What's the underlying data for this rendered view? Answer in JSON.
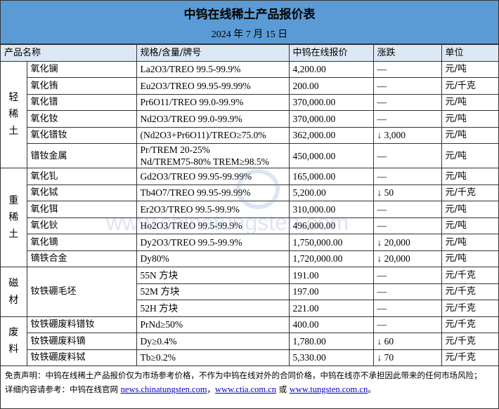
{
  "title": "中钨在线稀土产品报价表",
  "date": "2024 年 7 月 15 日",
  "headers": [
    "产品名称",
    "规格/含量/牌号",
    "中钨在线报价",
    "涨跌",
    "单位"
  ],
  "categories": [
    "轻稀土",
    "重稀土",
    "磁材",
    "废料"
  ],
  "rows": [
    {
      "name": "氧化镧",
      "spec": "La2O3/TREO 99.5-99.9%",
      "price": "4,200.00",
      "change": "—",
      "unit": "元/吨"
    },
    {
      "name": "氧化铕",
      "spec": "Eu2O3/TREO 99.95-99.99%",
      "price": "200.00",
      "change": "—",
      "unit": "元/千克"
    },
    {
      "name": "氧化镨",
      "spec": "Pr6O11/TREO 99.0-99.9%",
      "price": "370,000.00",
      "change": "—",
      "unit": "元/吨"
    },
    {
      "name": "氧化钕",
      "spec": "Nd2O3/TREO 99.0-99.9%",
      "price": "370,000.00",
      "change": "—",
      "unit": "元/吨"
    },
    {
      "name": "氧化镨钕",
      "spec": "(Nd2O3+Pr6O11)/TREO≥75.0%",
      "price": "362,000.00",
      "change": "↓ 3,000",
      "unit": "元/吨"
    },
    {
      "name": "镨钕金属",
      "spec": "Pr/TREM 20-25%",
      "spec2": "Nd/TREM75-80% TREM≥98.5%",
      "price": "450,000.00",
      "change": "—",
      "unit": "元/吨"
    },
    {
      "name": "氧化钆",
      "spec": "Gd2O3/TREO 99.95-99.99%",
      "price": "165,000.00",
      "change": "—",
      "unit": "元/吨"
    },
    {
      "name": "氧化铽",
      "spec": "Tb4O7/TREO 99.95-99.99%",
      "price": "5,200.00",
      "change": "↓ 50",
      "unit": "元/千克"
    },
    {
      "name": "氧化铒",
      "spec": "Er2O3/TREO 99.5-99.9%",
      "price": "310,000.00",
      "change": "—",
      "unit": "元/吨"
    },
    {
      "name": "氧化钬",
      "spec": "Ho2O3/TREO 99.5-99.9%",
      "price": "496,000.00",
      "change": "—",
      "unit": "元/吨"
    },
    {
      "name": "氧化镝",
      "spec": "Dy2O3/TREO 99.5-99.9%",
      "price": "1,750,000.00",
      "change": "↓ 20,000",
      "unit": "元/吨"
    },
    {
      "name": "镝铁合金",
      "spec": "Dy80%",
      "price": "1,720,000.00",
      "change": "↓ 20,000",
      "unit": "元/吨"
    },
    {
      "name": "钕铁硼毛坯",
      "spec": "55N 方块",
      "price": "191.00",
      "change": "—",
      "unit": "元/千克"
    },
    {
      "spec": "52M 方块",
      "price": "197.00",
      "change": "—",
      "unit": "元/千克"
    },
    {
      "spec": "52H 方块",
      "price": "221.00",
      "change": "—",
      "unit": "元/千克"
    },
    {
      "name": "钕铁硼废料镨钕",
      "spec": "PrNd≥50%",
      "price": "400.00",
      "change": "—",
      "unit": "元/千克"
    },
    {
      "name": "钕铁硼废料镝",
      "spec": "Dy≥0.4%",
      "price": "1,780.00",
      "change": "↓ 60",
      "unit": "元/千克"
    },
    {
      "name": "钕铁硼废料铽",
      "spec": "Tb≥0.2%",
      "price": "5,330.00",
      "change": "↓ 70",
      "unit": "元/千克"
    }
  ],
  "footer": {
    "disclaimer": "免责声明：中钨在线稀土产品报价仅为市场参考价格，不作为中钨在线对外的合同价格，中钨在线亦不承担因此带来的任何市场风险；",
    "ref_prefix": "详细内容请参考：中钨在线官网 ",
    "link1": "news.chinatungsten.com",
    "sep1": "，",
    "link2": "www.ctia.com.cn",
    "sep2": " 或 ",
    "link3": "www.tungsten.com.cn",
    "end": "。"
  },
  "watermark": "www.chinatungsten.com",
  "colors": {
    "header_bg": "#5b9bd5",
    "link": "#0000cc"
  }
}
